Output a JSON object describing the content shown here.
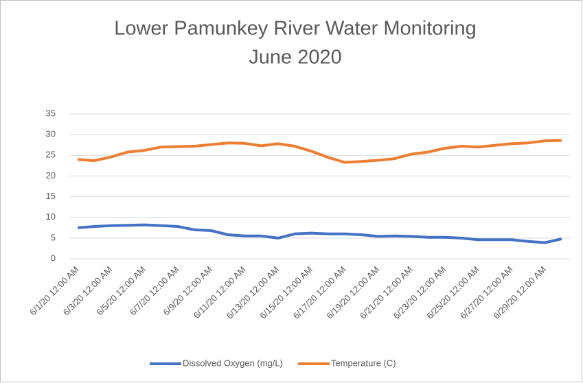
{
  "chart_data": {
    "type": "line",
    "title": "Lower Pamunkey River Water Monitoring",
    "subtitle": "June 2020",
    "categories": [
      "6/1/20 12:00 AM",
      null,
      "6/3/20 12:00 AM",
      null,
      "6/5/20 12:00 AM",
      null,
      "6/7/20 12:00 AM",
      null,
      "6/9/20 12:00 AM",
      null,
      "6/11/20 12:00 AM",
      null,
      "6/13/20 12:00 AM",
      null,
      "6/15/20 12:00 AM",
      null,
      "6/17/20 12:00 AM",
      null,
      "6/19/20 12:00 AM",
      null,
      "6/21/20 12:00 AM",
      null,
      "6/23/20 12:00 AM",
      null,
      "6/25/20 12:00 AM",
      null,
      "6/27/20 12:00 AM",
      null,
      "6/29/20 12:00 AM",
      null
    ],
    "series": [
      {
        "name": "Dissolved Oxygen (mg/L)",
        "color": "#4472c4",
        "values": [
          7.5,
          7.8,
          8,
          8.1,
          8.2,
          8,
          7.8,
          7,
          6.8,
          5.8,
          5.5,
          5.5,
          5,
          6,
          6.2,
          6,
          6,
          5.8,
          5.4,
          5.5,
          5.4,
          5.2,
          5.2,
          5,
          4.6,
          4.6,
          4.6,
          4.2,
          3.9,
          4.8
        ]
      },
      {
        "name": "Temperature (C)",
        "color": "#ed7d31",
        "values": [
          24,
          23.7,
          24.6,
          25.8,
          26.2,
          27,
          27.1,
          27.2,
          27.6,
          28,
          27.9,
          27.3,
          27.8,
          27.2,
          26,
          24.5,
          23.3,
          23.5,
          23.8,
          24.2,
          25.3,
          25.8,
          26.7,
          27.2,
          27,
          27.4,
          27.8,
          28,
          28.5,
          28.6
        ]
      }
    ],
    "ylim": [
      0,
      35
    ],
    "yticks": [
      0,
      5,
      10,
      15,
      20,
      25,
      30,
      35
    ],
    "grid": true,
    "legend": "bottom"
  }
}
